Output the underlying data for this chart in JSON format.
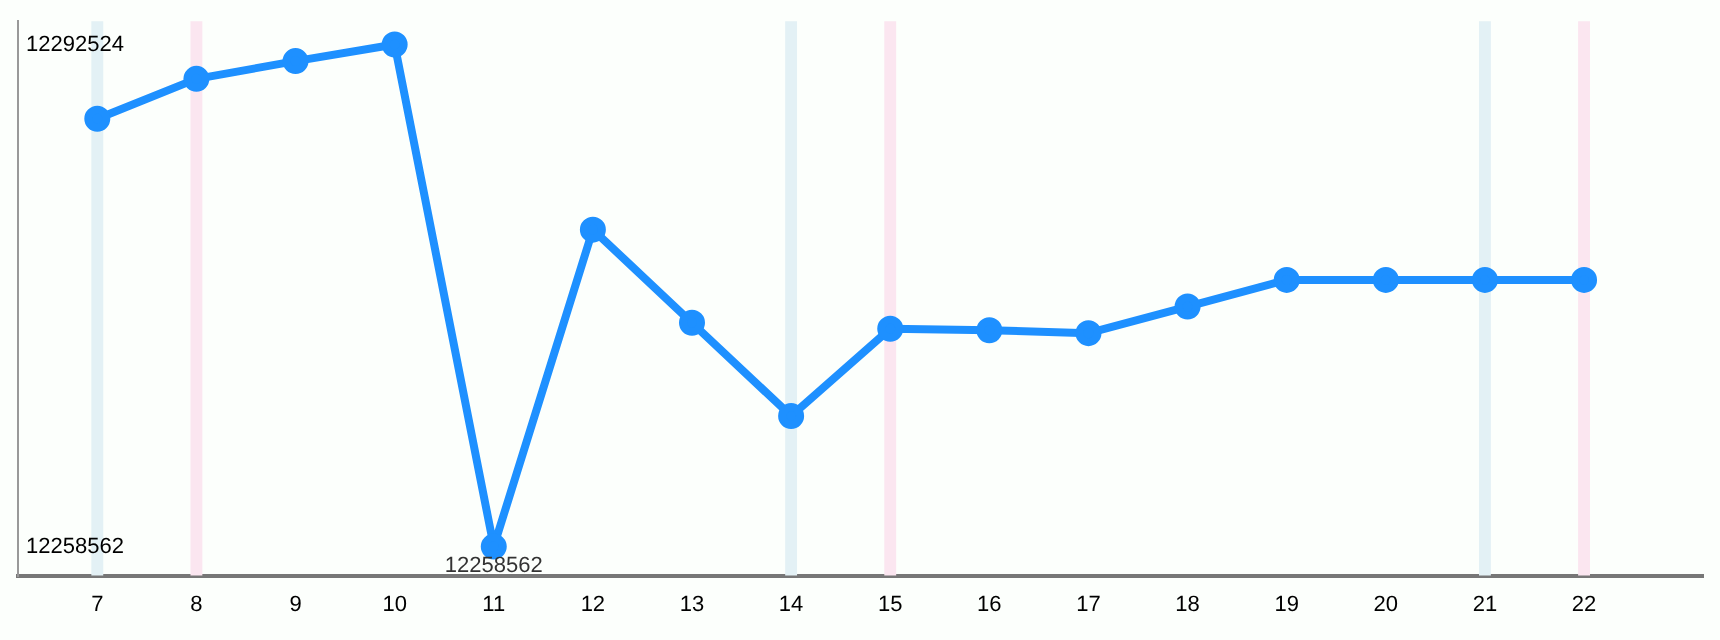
{
  "chart_data": {
    "type": "line",
    "x": [
      7,
      8,
      9,
      10,
      11,
      12,
      13,
      14,
      15,
      16,
      17,
      18,
      19,
      20,
      21,
      22
    ],
    "series": [
      {
        "color": "#1e90ff",
        "values": [
          12287500,
          12290200,
          12291400,
          12292524,
          12258562,
          12280000,
          12273700,
          12267400,
          12273300,
          12273200,
          12273000,
          12274800,
          12276600,
          12276600,
          12276600,
          12276600
        ],
        "value_labels": [
          null,
          null,
          null,
          null,
          "12258562",
          null,
          null,
          null,
          null,
          null,
          null,
          null,
          null,
          null,
          null,
          null
        ]
      }
    ],
    "xlim": [
      6.2,
      23.2
    ],
    "xticks": [
      7,
      8,
      9,
      10,
      11,
      12,
      13,
      14,
      15,
      16,
      17,
      18,
      19,
      20,
      21,
      22
    ],
    "ylim": [
      12256600,
      12294100
    ],
    "yticks": [
      12258562,
      12292524
    ],
    "bands": [
      {
        "axis": "x",
        "from": 6.94,
        "to": 7.06,
        "color": "#e3f1f5"
      },
      {
        "axis": "x",
        "from": 7.94,
        "to": 8.06,
        "color": "#fbe6f0"
      },
      {
        "axis": "x",
        "from": 13.94,
        "to": 14.06,
        "color": "#e3f1f5"
      },
      {
        "axis": "x",
        "from": 14.94,
        "to": 15.06,
        "color": "#fbe6f0"
      },
      {
        "axis": "x",
        "from": 20.94,
        "to": 21.06,
        "color": "#e3f1f5"
      },
      {
        "axis": "x",
        "from": 21.94,
        "to": 22.06,
        "color": "#fbe6f0"
      }
    ],
    "grid": false,
    "legend": false,
    "marker": "circle",
    "line_style": "solid"
  }
}
